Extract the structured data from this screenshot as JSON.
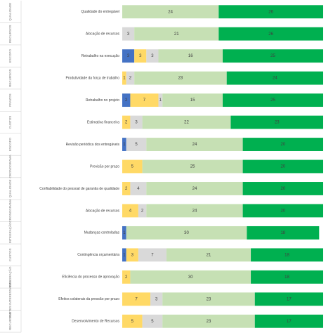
{
  "chart_data": {
    "type": "stacked-bar-h",
    "groups": [
      "QUALIDADE",
      "RECURSOS",
      "ESCOPO",
      "RECURSOS",
      "PRAZOS",
      "CUSTOS",
      "ESCOPO",
      "CRONOGRAMA",
      "QUALIDADE",
      "CRONOGRAMA",
      "INTEGRAÇÃO",
      "CUSTOS",
      "INTEGRAÇÃO",
      "PARTES INTERESSADAS",
      "RECURSOS"
    ],
    "categories": [
      "Qualidade do entregável",
      "Alocação de recursos",
      "Retrabalho na execução",
      "Produtividade da força de trabalho",
      "Retrabalho no projeto",
      "Estimativa financeira",
      "Revisão periódica dos entregáveis",
      "Previsão por prazo",
      "Confiabilidade do pessoal de garantia de qualidade",
      "Alocação de recursos",
      "Mudanças controladas",
      "Contingência orçamentária",
      "Eficiência do processo de aprovação",
      "Efeitos colaterais da pressão por prazo",
      "Desenvolvimento de Recursos"
    ],
    "series": [
      {
        "color": "#4472c4",
        "values": [
          null,
          null,
          3,
          null,
          2,
          null,
          1,
          null,
          null,
          null,
          1,
          1,
          null,
          null,
          null
        ]
      },
      {
        "color": "#ffd966",
        "values": [
          null,
          null,
          3,
          1,
          7,
          2,
          null,
          5,
          2,
          4,
          null,
          3,
          2,
          7,
          5
        ]
      },
      {
        "color": "#d9d9d9",
        "values": [
          null,
          3,
          3,
          2,
          1,
          3,
          5,
          null,
          4,
          2,
          null,
          7,
          null,
          3,
          5
        ]
      },
      {
        "color": "#c6e0b4",
        "values": [
          24,
          21,
          16,
          23,
          15,
          22,
          24,
          25,
          24,
          24,
          30,
          21,
          30,
          23,
          23
        ]
      },
      {
        "color": "#00b050",
        "values": [
          26,
          26,
          25,
          24,
          25,
          23,
          20,
          20,
          20,
          20,
          18,
          18,
          18,
          17,
          17
        ]
      }
    ],
    "xlim": [
      0,
      50
    ]
  }
}
